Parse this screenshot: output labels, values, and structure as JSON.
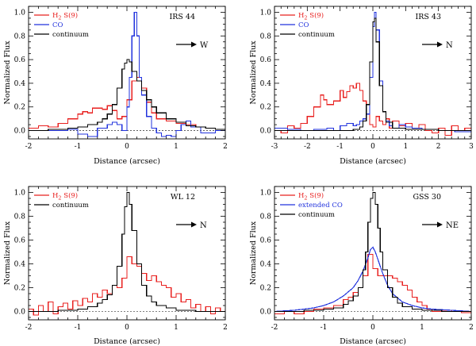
{
  "chart_data": [
    {
      "type": "line",
      "title": "IRS 44",
      "direction": "W",
      "xlabel": "Distance (arcsec)",
      "ylabel": "Normalized Flux",
      "xlim": [
        -2,
        2
      ],
      "ylim": [
        -0.07,
        1.05
      ],
      "xticks": [
        -2,
        -1,
        0,
        1,
        2
      ],
      "xticklabels": [
        "-2",
        "-1",
        "0",
        "1",
        "2"
      ],
      "yticks": [
        0.0,
        0.2,
        0.4,
        0.6,
        0.8,
        1.0
      ],
      "yticklabels": [
        "0.0",
        "0.2",
        "0.4",
        "0.6",
        "0.8",
        "1.0"
      ],
      "legend": [
        {
          "label": "H2 S(9)",
          "color": "#e8201f"
        },
        {
          "label": "CO",
          "color": "#2233dd"
        },
        {
          "label": "continuum",
          "color": "#000000"
        }
      ],
      "series": [
        {
          "name": "H2 S(9)",
          "color": "#e8201f",
          "step": true,
          "x": [
            -2.0,
            -1.8,
            -1.6,
            -1.4,
            -1.2,
            -1.0,
            -0.9,
            -0.8,
            -0.7,
            -0.6,
            -0.5,
            -0.4,
            -0.3,
            -0.2,
            -0.1,
            0.0,
            0.1,
            0.2,
            0.3,
            0.4,
            0.5,
            0.6,
            0.8,
            1.0,
            1.2,
            1.4,
            1.6,
            1.8,
            2.0
          ],
          "y": [
            0.02,
            0.04,
            0.03,
            0.06,
            0.1,
            0.14,
            0.16,
            0.15,
            0.19,
            0.19,
            0.18,
            0.21,
            0.17,
            0.1,
            0.12,
            0.26,
            0.42,
            0.45,
            0.36,
            0.24,
            0.15,
            0.1,
            0.08,
            0.06,
            0.05,
            0.03,
            0.02,
            0.01,
            0.0
          ]
        },
        {
          "name": "CO",
          "color": "#2233dd",
          "step": true,
          "x": [
            -2.0,
            -1.6,
            -1.2,
            -1.0,
            -0.8,
            -0.6,
            -0.4,
            -0.3,
            -0.2,
            -0.1,
            0.0,
            0.05,
            0.1,
            0.15,
            0.2,
            0.25,
            0.3,
            0.4,
            0.5,
            0.6,
            0.7,
            0.8,
            0.9,
            1.0,
            1.1,
            1.2,
            1.3,
            1.5,
            1.8,
            2.0
          ],
          "y": [
            0.0,
            0.0,
            0.01,
            -0.03,
            -0.05,
            0.02,
            0.05,
            0.07,
            0.05,
            0.0,
            0.2,
            0.45,
            0.8,
            1.0,
            0.8,
            0.45,
            0.3,
            0.12,
            0.02,
            -0.02,
            -0.05,
            -0.04,
            -0.05,
            0.0,
            0.05,
            0.08,
            0.03,
            -0.02,
            0.0,
            0.0
          ]
        },
        {
          "name": "continuum",
          "color": "#000000",
          "step": true,
          "x": [
            -2.0,
            -1.6,
            -1.2,
            -1.0,
            -0.8,
            -0.6,
            -0.5,
            -0.4,
            -0.3,
            -0.2,
            -0.1,
            -0.05,
            0.0,
            0.05,
            0.1,
            0.2,
            0.3,
            0.4,
            0.5,
            0.6,
            0.8,
            1.0,
            1.2,
            1.4,
            1.6,
            1.8,
            2.0
          ],
          "y": [
            0.0,
            0.01,
            0.02,
            0.03,
            0.05,
            0.07,
            0.1,
            0.14,
            0.22,
            0.36,
            0.52,
            0.57,
            0.6,
            0.58,
            0.5,
            0.42,
            0.34,
            0.26,
            0.2,
            0.15,
            0.1,
            0.07,
            0.04,
            0.03,
            0.02,
            0.01,
            0.0
          ]
        }
      ]
    },
    {
      "type": "line",
      "title": "IRS 43",
      "direction": "N",
      "xlabel": "Distance (arcsec)",
      "ylabel": "Normalized Flux",
      "xlim": [
        -3,
        3
      ],
      "ylim": [
        -0.07,
        1.05
      ],
      "xticks": [
        -3,
        -2,
        -1,
        0,
        1,
        2,
        3
      ],
      "xticklabels": [
        "-3",
        "-2",
        "-1",
        "0",
        "1",
        "2",
        "3"
      ],
      "yticks": [
        0.0,
        0.2,
        0.4,
        0.6,
        0.8,
        1.0
      ],
      "yticklabels": [
        "0.0",
        "0.2",
        "0.4",
        "0.6",
        "0.8",
        "1.0"
      ],
      "legend": [
        {
          "label": "H2 S(9)",
          "color": "#e8201f"
        },
        {
          "label": "CO",
          "color": "#2233dd"
        },
        {
          "label": "continuum",
          "color": "#000000"
        }
      ],
      "series": [
        {
          "name": "H2 S(9)",
          "color": "#e8201f",
          "step": true,
          "x": [
            -3.0,
            -2.8,
            -2.6,
            -2.4,
            -2.2,
            -2.0,
            -1.8,
            -1.6,
            -1.5,
            -1.4,
            -1.2,
            -1.0,
            -0.9,
            -0.8,
            -0.7,
            -0.6,
            -0.5,
            -0.4,
            -0.3,
            -0.2,
            -0.1,
            0.0,
            0.1,
            0.2,
            0.3,
            0.4,
            0.5,
            0.6,
            0.8,
            1.0,
            1.2,
            1.4,
            1.6,
            1.8,
            2.0,
            2.2,
            2.4,
            2.6,
            2.8,
            3.0
          ],
          "y": [
            0.0,
            -0.02,
            0.04,
            0.02,
            0.06,
            0.12,
            0.2,
            0.3,
            0.26,
            0.22,
            0.25,
            0.34,
            0.28,
            0.33,
            0.38,
            0.36,
            0.4,
            0.34,
            0.25,
            0.14,
            0.05,
            0.03,
            0.12,
            0.08,
            0.05,
            0.1,
            0.02,
            0.08,
            0.04,
            0.06,
            0.02,
            0.05,
            0.0,
            -0.02,
            0.02,
            -0.04,
            0.04,
            0.0,
            0.02,
            0.0
          ]
        },
        {
          "name": "CO",
          "color": "#2233dd",
          "step": true,
          "x": [
            -3.0,
            -2.6,
            -2.2,
            -1.8,
            -1.4,
            -1.2,
            -1.0,
            -0.8,
            -0.6,
            -0.5,
            -0.4,
            -0.3,
            -0.2,
            -0.1,
            0.0,
            0.05,
            0.1,
            0.2,
            0.3,
            0.4,
            0.5,
            0.6,
            0.8,
            1.0,
            1.2,
            1.5,
            2.0,
            2.5,
            3.0
          ],
          "y": [
            0.02,
            0.01,
            0.0,
            0.01,
            0.02,
            0.0,
            0.04,
            0.06,
            0.04,
            0.05,
            0.08,
            0.1,
            0.14,
            0.45,
            0.88,
            1.0,
            0.85,
            0.42,
            0.16,
            0.08,
            0.04,
            0.02,
            0.05,
            0.03,
            0.02,
            0.01,
            0.0,
            -0.01,
            0.0
          ]
        },
        {
          "name": "continuum",
          "color": "#000000",
          "step": true,
          "x": [
            -3.0,
            -2.0,
            -1.0,
            -0.6,
            -0.4,
            -0.3,
            -0.2,
            -0.1,
            0.0,
            0.05,
            0.1,
            0.2,
            0.3,
            0.4,
            0.6,
            1.0,
            2.0,
            3.0
          ],
          "y": [
            0.0,
            0.0,
            0.0,
            0.01,
            0.03,
            0.08,
            0.22,
            0.58,
            0.92,
            0.95,
            0.75,
            0.38,
            0.16,
            0.07,
            0.02,
            0.01,
            0.0,
            0.0
          ]
        }
      ]
    },
    {
      "type": "line",
      "title": "WL 12",
      "direction": "N",
      "xlabel": "Distance (arcsec)",
      "ylabel": "Normalized Flux",
      "xlim": [
        -2,
        2
      ],
      "ylim": [
        -0.07,
        1.05
      ],
      "xticks": [
        -2,
        -1,
        0,
        1,
        2
      ],
      "xticklabels": [
        "-2",
        "-1",
        "0",
        "1",
        "2"
      ],
      "yticks": [
        0.0,
        0.2,
        0.4,
        0.6,
        0.8,
        1.0
      ],
      "yticklabels": [
        "0.0",
        "0.2",
        "0.4",
        "0.6",
        "0.8",
        "1.0"
      ],
      "legend": [
        {
          "label": "H2 S(9)",
          "color": "#e8201f"
        },
        {
          "label": "continuum",
          "color": "#000000"
        }
      ],
      "series": [
        {
          "name": "H2 S(9)",
          "color": "#e8201f",
          "step": true,
          "x": [
            -2.0,
            -1.9,
            -1.8,
            -1.7,
            -1.6,
            -1.5,
            -1.4,
            -1.3,
            -1.2,
            -1.1,
            -1.0,
            -0.9,
            -0.8,
            -0.7,
            -0.6,
            -0.5,
            -0.4,
            -0.3,
            -0.2,
            -0.1,
            0.0,
            0.1,
            0.2,
            0.3,
            0.4,
            0.5,
            0.6,
            0.7,
            0.8,
            0.9,
            1.0,
            1.1,
            1.2,
            1.3,
            1.4,
            1.5,
            1.6,
            1.7,
            1.8,
            1.9,
            2.0
          ],
          "y": [
            0.02,
            -0.03,
            0.05,
            0.0,
            0.08,
            -0.02,
            0.04,
            0.07,
            0.02,
            0.09,
            0.05,
            0.11,
            0.08,
            0.15,
            0.12,
            0.18,
            0.15,
            0.22,
            0.2,
            0.28,
            0.46,
            0.4,
            0.38,
            0.32,
            0.26,
            0.3,
            0.25,
            0.22,
            0.2,
            0.12,
            0.15,
            0.08,
            0.1,
            0.03,
            0.06,
            0.0,
            0.04,
            -0.02,
            0.03,
            0.0,
            0.02
          ]
        },
        {
          "name": "continuum",
          "color": "#000000",
          "step": true,
          "x": [
            -2.0,
            -1.4,
            -1.0,
            -0.8,
            -0.6,
            -0.5,
            -0.4,
            -0.3,
            -0.2,
            -0.1,
            -0.05,
            0.0,
            0.05,
            0.1,
            0.2,
            0.3,
            0.4,
            0.5,
            0.6,
            0.8,
            1.0,
            1.4,
            2.0
          ],
          "y": [
            0.0,
            0.01,
            0.02,
            0.04,
            0.07,
            0.1,
            0.14,
            0.22,
            0.38,
            0.65,
            0.88,
            1.0,
            0.9,
            0.68,
            0.4,
            0.22,
            0.13,
            0.08,
            0.05,
            0.03,
            0.01,
            0.0,
            0.0
          ]
        }
      ]
    },
    {
      "type": "line",
      "title": "GSS 30",
      "direction": "NE",
      "xlabel": "Distance (arcsec)",
      "ylabel": "Normalized Flux",
      "xlim": [
        -2,
        2
      ],
      "ylim": [
        -0.07,
        1.05
      ],
      "xticks": [
        -2,
        -1,
        0,
        1,
        2
      ],
      "xticklabels": [
        "-2",
        "-1",
        "0",
        "1",
        "2"
      ],
      "yticks": [
        0.0,
        0.2,
        0.4,
        0.6,
        0.8,
        1.0
      ],
      "yticklabels": [
        "0.0",
        "0.2",
        "0.4",
        "0.6",
        "0.8",
        "1.0"
      ],
      "legend": [
        {
          "label": "H2 S(9)",
          "color": "#e8201f"
        },
        {
          "label": "extended CO",
          "color": "#2233dd"
        },
        {
          "label": "continuum",
          "color": "#000000"
        }
      ],
      "series": [
        {
          "name": "H2 S(9)",
          "color": "#e8201f",
          "step": true,
          "x": [
            -2.0,
            -1.8,
            -1.6,
            -1.4,
            -1.2,
            -1.0,
            -0.8,
            -0.6,
            -0.5,
            -0.4,
            -0.3,
            -0.2,
            -0.1,
            0.0,
            0.1,
            0.2,
            0.3,
            0.4,
            0.5,
            0.6,
            0.7,
            0.8,
            0.9,
            1.0,
            1.1,
            1.2,
            1.4,
            1.6,
            1.8,
            2.0
          ],
          "y": [
            -0.02,
            0.0,
            -0.02,
            0.0,
            0.02,
            0.03,
            0.05,
            0.1,
            0.12,
            0.16,
            0.2,
            0.3,
            0.48,
            0.36,
            0.3,
            0.3,
            0.3,
            0.28,
            0.25,
            0.22,
            0.18,
            0.12,
            0.08,
            0.05,
            0.02,
            0.0,
            0.01,
            0.0,
            -0.01,
            0.0
          ]
        },
        {
          "name": "extended CO",
          "color": "#2233dd",
          "step": false,
          "x": [
            -2.0,
            -1.6,
            -1.2,
            -1.0,
            -0.8,
            -0.6,
            -0.4,
            -0.3,
            -0.2,
            -0.1,
            -0.05,
            0.0,
            0.05,
            0.1,
            0.2,
            0.3,
            0.4,
            0.6,
            0.8,
            1.0,
            1.2,
            1.6,
            2.0
          ],
          "y": [
            0.0,
            0.01,
            0.03,
            0.05,
            0.08,
            0.13,
            0.2,
            0.26,
            0.34,
            0.45,
            0.52,
            0.54,
            0.5,
            0.44,
            0.32,
            0.22,
            0.15,
            0.08,
            0.05,
            0.03,
            0.02,
            0.01,
            0.0
          ]
        },
        {
          "name": "continuum",
          "color": "#000000",
          "step": true,
          "x": [
            -2.0,
            -1.4,
            -1.0,
            -0.8,
            -0.6,
            -0.5,
            -0.4,
            -0.3,
            -0.2,
            -0.15,
            -0.1,
            -0.05,
            0.0,
            0.05,
            0.1,
            0.15,
            0.2,
            0.3,
            0.4,
            0.5,
            0.6,
            0.8,
            1.0,
            1.4,
            2.0
          ],
          "y": [
            0.0,
            0.01,
            0.02,
            0.03,
            0.06,
            0.09,
            0.13,
            0.2,
            0.35,
            0.5,
            0.75,
            0.95,
            1.0,
            0.9,
            0.7,
            0.5,
            0.35,
            0.2,
            0.12,
            0.07,
            0.04,
            0.02,
            0.01,
            0.0,
            0.0
          ]
        }
      ]
    }
  ]
}
